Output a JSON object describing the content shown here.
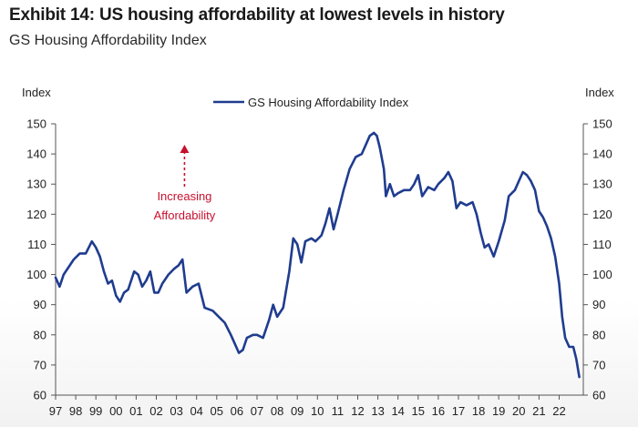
{
  "header": {
    "title": "Exhibit 14: US housing affordability at lowest levels in history",
    "subtitle": "GS Housing Affordability Index"
  },
  "colors": {
    "series": "#1f3c8f",
    "annotation": "#c8102e",
    "axis": "#555555"
  },
  "chart_data": {
    "type": "line",
    "title": "Exhibit 14: US housing affordability at lowest levels in history",
    "subtitle": "GS Housing Affordability Index",
    "ylabel_left": "Index",
    "ylabel_right": "Index",
    "ylim": [
      60,
      150
    ],
    "yticks": [
      60,
      70,
      80,
      90,
      100,
      110,
      120,
      130,
      140,
      150
    ],
    "xlim": [
      1997,
      2023.2
    ],
    "xticks": [
      {
        "year": 1997,
        "label": "97"
      },
      {
        "year": 1998,
        "label": "98"
      },
      {
        "year": 1999,
        "label": "99"
      },
      {
        "year": 2000,
        "label": "00"
      },
      {
        "year": 2001,
        "label": "01"
      },
      {
        "year": 2002,
        "label": "02"
      },
      {
        "year": 2003,
        "label": "03"
      },
      {
        "year": 2004,
        "label": "04"
      },
      {
        "year": 2005,
        "label": "05"
      },
      {
        "year": 2006,
        "label": "06"
      },
      {
        "year": 2007,
        "label": "07"
      },
      {
        "year": 2008,
        "label": "08"
      },
      {
        "year": 2009,
        "label": "09"
      },
      {
        "year": 2010,
        "label": "10"
      },
      {
        "year": 2011,
        "label": "11"
      },
      {
        "year": 2012,
        "label": "12"
      },
      {
        "year": 2013,
        "label": "13"
      },
      {
        "year": 2014,
        "label": "14"
      },
      {
        "year": 2015,
        "label": "15"
      },
      {
        "year": 2016,
        "label": "16"
      },
      {
        "year": 2017,
        "label": "17"
      },
      {
        "year": 2018,
        "label": "18"
      },
      {
        "year": 2019,
        "label": "19"
      },
      {
        "year": 2020,
        "label": "20"
      },
      {
        "year": 2021,
        "label": "21"
      },
      {
        "year": 2022,
        "label": "22"
      }
    ],
    "grid": false,
    "legend": {
      "position": "top-center",
      "entries": [
        "GS Housing Affordability Index"
      ]
    },
    "annotation": {
      "lines": [
        "Increasing",
        "Affordability"
      ],
      "direction": "up",
      "year": 2003.4
    },
    "series": [
      {
        "name": "GS Housing Affordability Index",
        "points": [
          [
            1997.0,
            99
          ],
          [
            1997.2,
            96
          ],
          [
            1997.4,
            100
          ],
          [
            1997.6,
            102
          ],
          [
            1997.9,
            105
          ],
          [
            1998.2,
            107
          ],
          [
            1998.5,
            107
          ],
          [
            1998.8,
            111
          ],
          [
            1999.0,
            109
          ],
          [
            1999.2,
            106
          ],
          [
            1999.4,
            101
          ],
          [
            1999.6,
            97
          ],
          [
            1999.8,
            98
          ],
          [
            2000.0,
            93
          ],
          [
            2000.2,
            91
          ],
          [
            2000.4,
            94
          ],
          [
            2000.6,
            95
          ],
          [
            2000.9,
            101
          ],
          [
            2001.1,
            100
          ],
          [
            2001.3,
            96
          ],
          [
            2001.5,
            98
          ],
          [
            2001.7,
            101
          ],
          [
            2001.9,
            94
          ],
          [
            2002.1,
            94
          ],
          [
            2002.3,
            97
          ],
          [
            2002.6,
            100
          ],
          [
            2002.9,
            102
          ],
          [
            2003.1,
            103
          ],
          [
            2003.3,
            105
          ],
          [
            2003.5,
            94
          ],
          [
            2003.8,
            96
          ],
          [
            2004.1,
            97
          ],
          [
            2004.4,
            89
          ],
          [
            2004.8,
            88
          ],
          [
            2005.1,
            86
          ],
          [
            2005.4,
            84
          ],
          [
            2005.7,
            80
          ],
          [
            2005.9,
            77
          ],
          [
            2006.1,
            74
          ],
          [
            2006.3,
            75
          ],
          [
            2006.5,
            79
          ],
          [
            2006.8,
            80
          ],
          [
            2007.0,
            80
          ],
          [
            2007.3,
            79
          ],
          [
            2007.6,
            85
          ],
          [
            2007.8,
            90
          ],
          [
            2008.0,
            86
          ],
          [
            2008.3,
            89
          ],
          [
            2008.6,
            101
          ],
          [
            2008.8,
            112
          ],
          [
            2009.0,
            110
          ],
          [
            2009.2,
            104
          ],
          [
            2009.4,
            111
          ],
          [
            2009.7,
            112
          ],
          [
            2009.9,
            111
          ],
          [
            2010.2,
            113
          ],
          [
            2010.4,
            117
          ],
          [
            2010.6,
            122
          ],
          [
            2010.8,
            115
          ],
          [
            2011.0,
            120
          ],
          [
            2011.3,
            128
          ],
          [
            2011.6,
            135
          ],
          [
            2011.9,
            139
          ],
          [
            2012.2,
            140
          ],
          [
            2012.4,
            143
          ],
          [
            2012.6,
            146
          ],
          [
            2012.8,
            147
          ],
          [
            2012.95,
            146
          ],
          [
            2013.1,
            142
          ],
          [
            2013.3,
            135
          ],
          [
            2013.4,
            126
          ],
          [
            2013.6,
            130
          ],
          [
            2013.8,
            126
          ],
          [
            2014.0,
            127
          ],
          [
            2014.3,
            128
          ],
          [
            2014.6,
            128
          ],
          [
            2014.8,
            130
          ],
          [
            2015.0,
            133
          ],
          [
            2015.2,
            126
          ],
          [
            2015.5,
            129
          ],
          [
            2015.8,
            128
          ],
          [
            2016.0,
            130
          ],
          [
            2016.3,
            132
          ],
          [
            2016.5,
            134
          ],
          [
            2016.7,
            131
          ],
          [
            2016.9,
            122
          ],
          [
            2017.1,
            124
          ],
          [
            2017.4,
            123
          ],
          [
            2017.7,
            124
          ],
          [
            2017.9,
            120
          ],
          [
            2018.1,
            114
          ],
          [
            2018.3,
            109
          ],
          [
            2018.5,
            110
          ],
          [
            2018.75,
            106
          ],
          [
            2019.0,
            111
          ],
          [
            2019.3,
            118
          ],
          [
            2019.5,
            126
          ],
          [
            2019.8,
            128
          ],
          [
            2020.0,
            131
          ],
          [
            2020.2,
            134
          ],
          [
            2020.4,
            133
          ],
          [
            2020.6,
            131
          ],
          [
            2020.8,
            128
          ],
          [
            2021.0,
            121
          ],
          [
            2021.2,
            119
          ],
          [
            2021.4,
            116
          ],
          [
            2021.6,
            112
          ],
          [
            2021.8,
            106
          ],
          [
            2022.0,
            97
          ],
          [
            2022.15,
            86
          ],
          [
            2022.3,
            79
          ],
          [
            2022.5,
            76
          ],
          [
            2022.7,
            76
          ],
          [
            2022.85,
            72
          ],
          [
            2023.0,
            66
          ]
        ]
      }
    ]
  }
}
